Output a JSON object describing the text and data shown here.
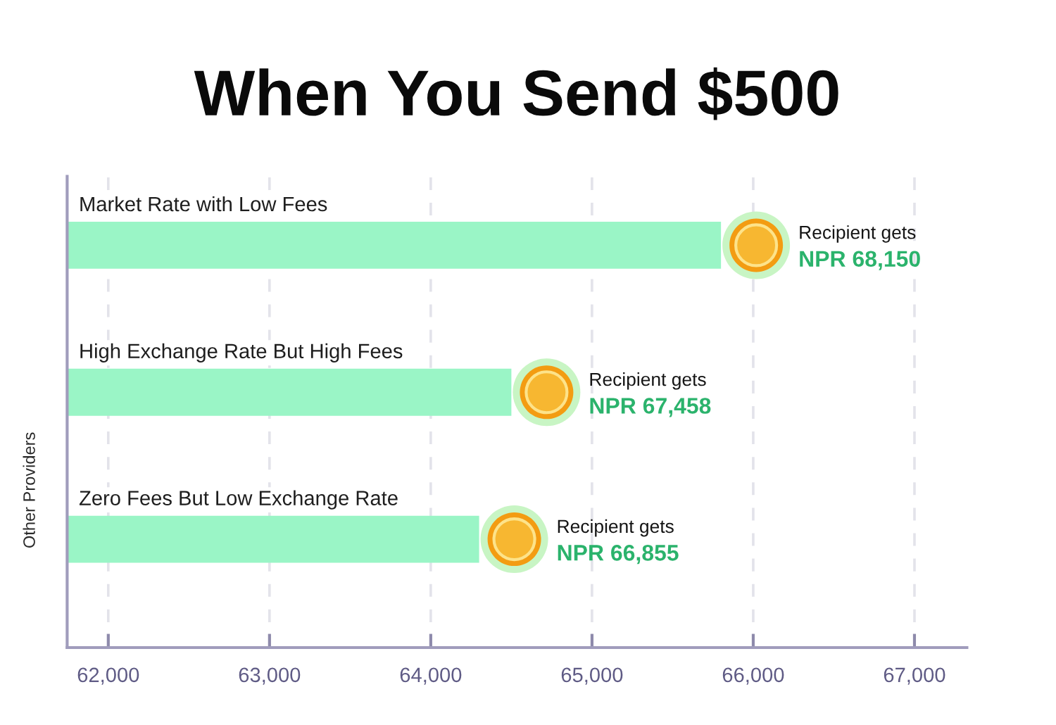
{
  "chart_data": {
    "type": "bar",
    "orientation": "horizontal",
    "title": "When You Send $500",
    "ylabel": "Other Providers",
    "categories": [
      "Market Rate with Low Fees",
      "High Exchange Rate But High Fees",
      "Zero Fees But Low Exchange Rate"
    ],
    "values": [
      65800,
      64500,
      64300
    ],
    "color": "#9af5c6",
    "xlim": [
      61745,
      67325
    ],
    "xticks": [
      {
        "value": 62000,
        "label": "62,000"
      },
      {
        "value": 63000,
        "label": "63,000"
      },
      {
        "value": 64000,
        "label": "64,000"
      },
      {
        "value": 65000,
        "label": "65,000"
      },
      {
        "value": 66000,
        "label": "66,000"
      },
      {
        "value": 67000,
        "label": "67,000"
      }
    ],
    "grid": "x",
    "annotations": [
      "Recipient gets\nNPR 68,150",
      "Recipient gets\nNPR 67,458",
      "Recipient gets\nNPR 66,855"
    ]
  }
}
